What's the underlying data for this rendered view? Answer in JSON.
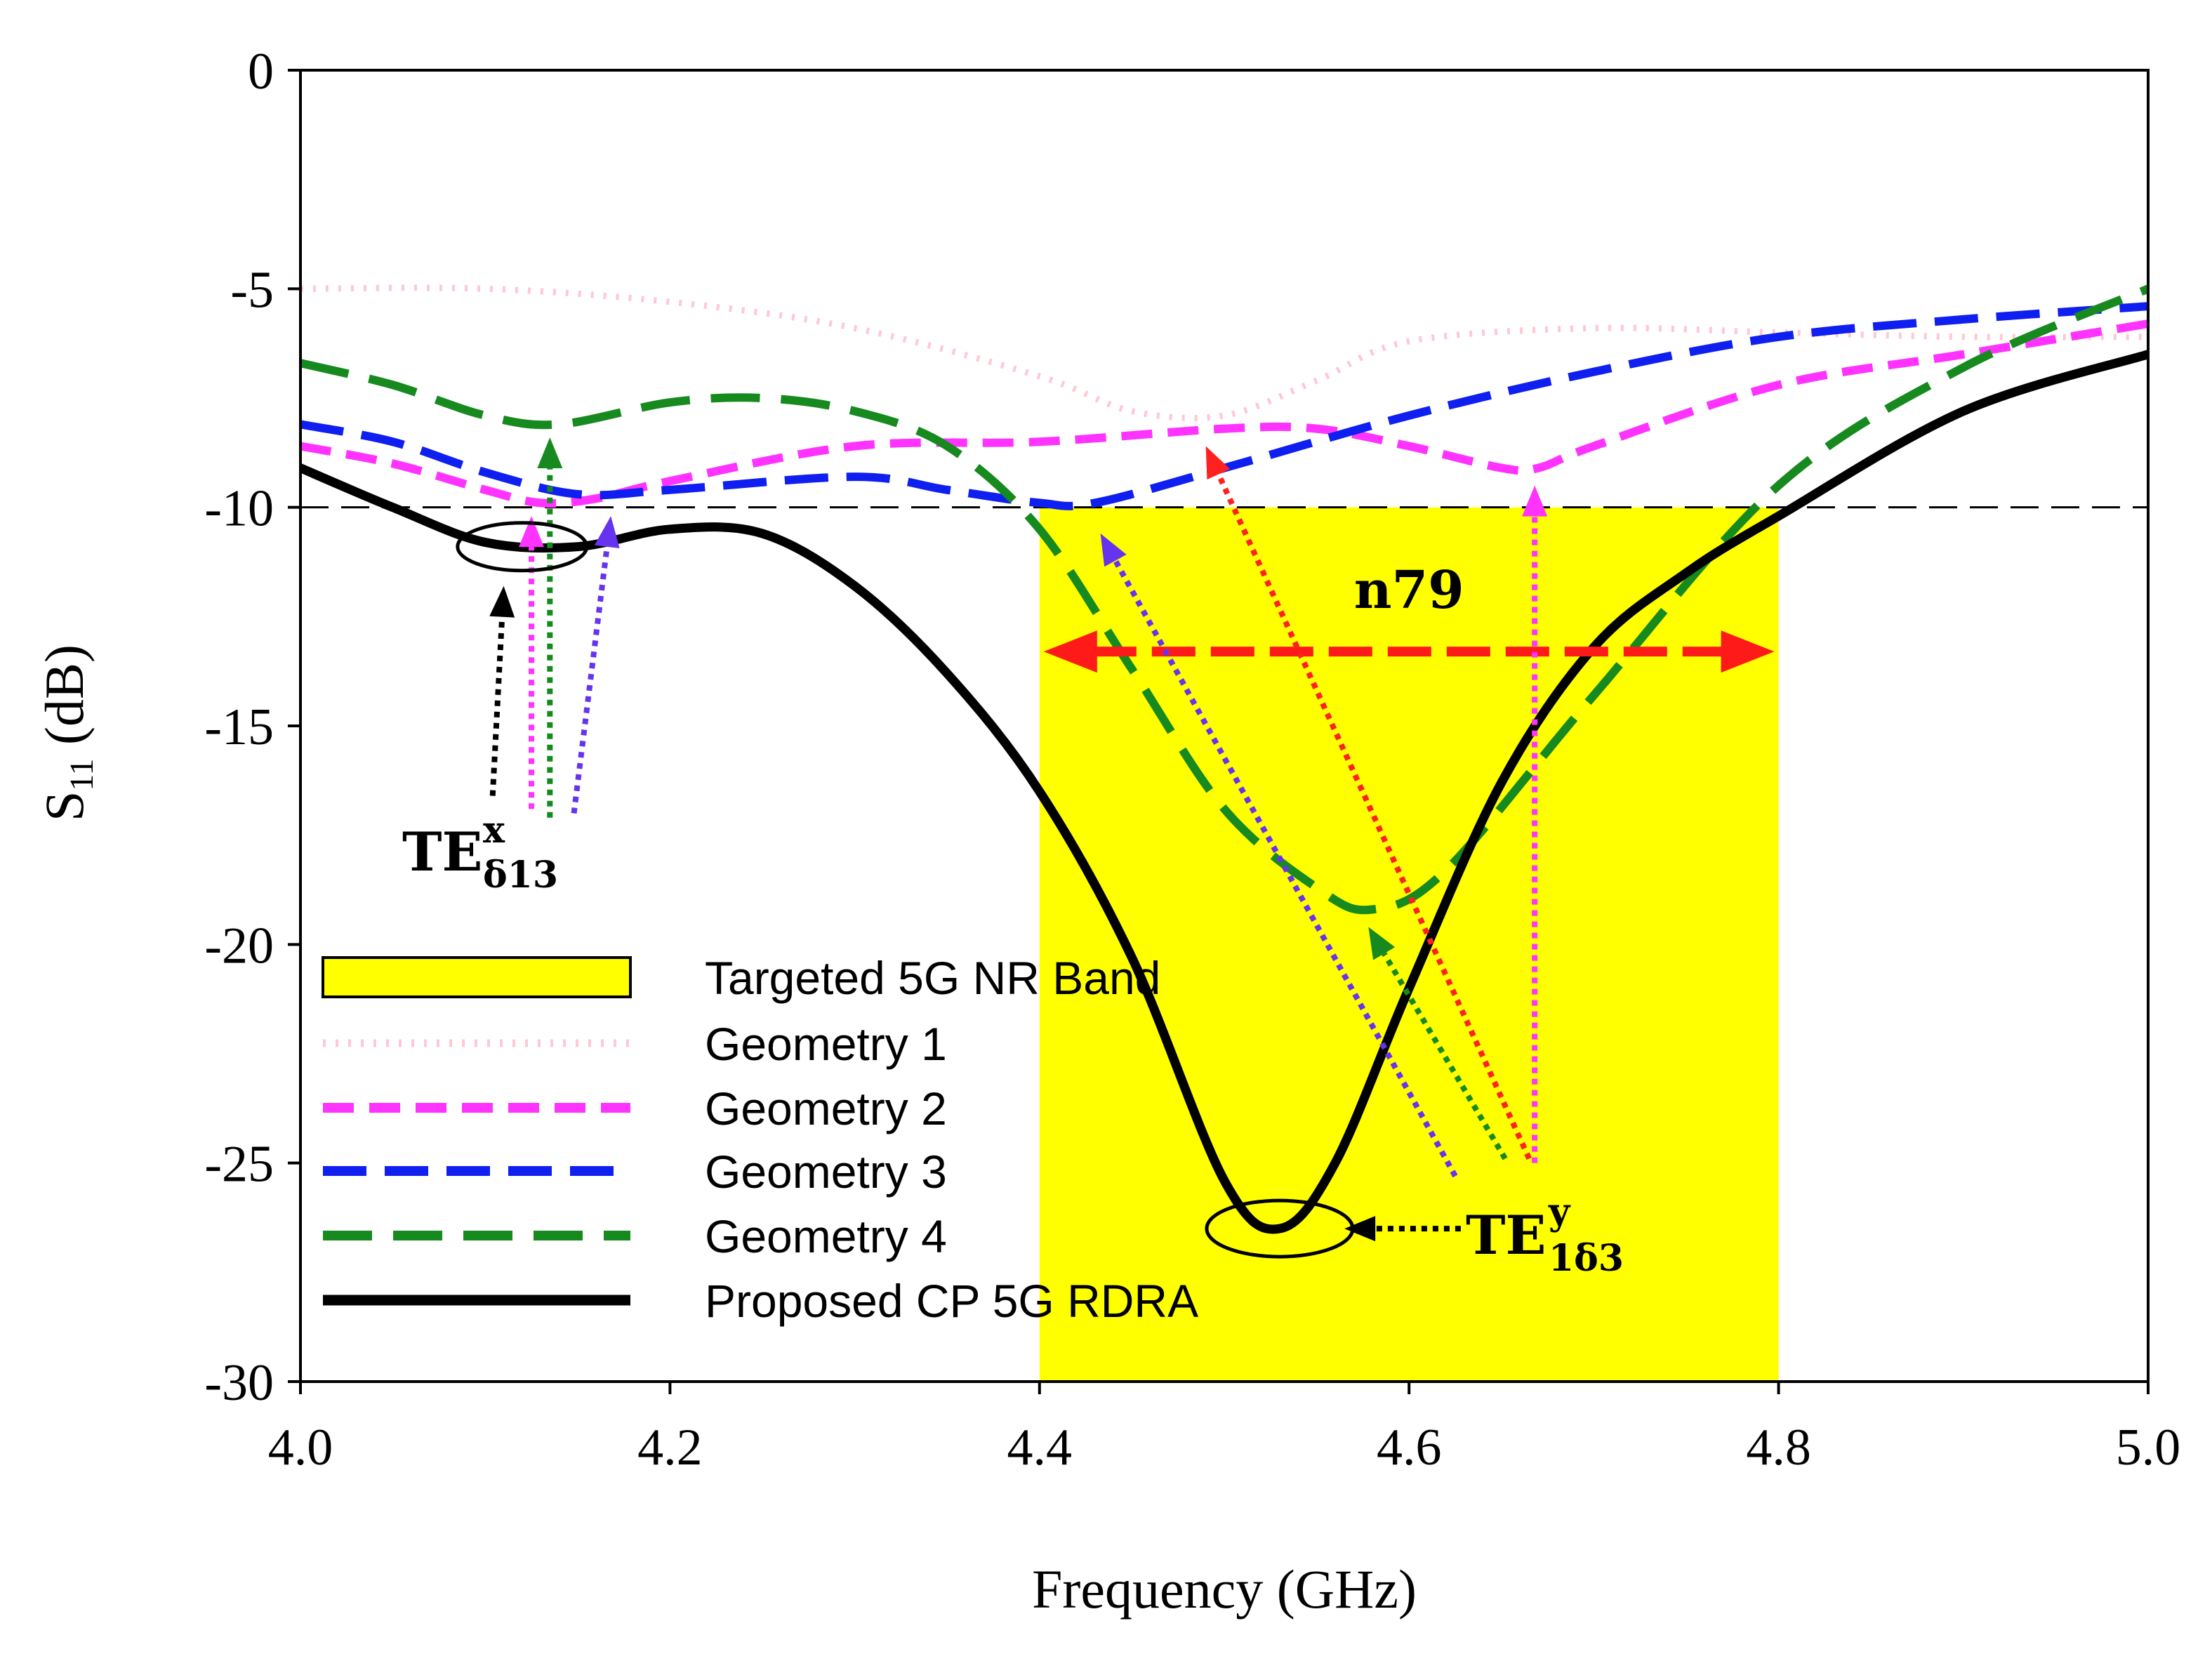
{
  "chart_data": {
    "type": "line",
    "xlabel": "Frequency (GHz)",
    "ylabel": {
      "main": "S",
      "sub": "11",
      "rest": " (dB)"
    },
    "xlim": [
      4.0,
      5.0
    ],
    "ylim": [
      -30,
      0
    ],
    "xticks": [
      "4.0",
      "4.2",
      "4.4",
      "4.6",
      "4.8",
      "5.0"
    ],
    "yticks": [
      "0",
      "-5",
      "-10",
      "-15",
      "-20",
      "-25",
      "-30"
    ],
    "reference_line": {
      "y": -10,
      "style": "dashed",
      "color": "#000000"
    },
    "band": {
      "name": "Targeted 5G NR Band",
      "x0": 4.4,
      "x1": 4.8,
      "y0": -30,
      "y1": -10,
      "color": "#ffff00",
      "label": "n79"
    },
    "series": [
      {
        "name": "Geometry 1",
        "color": "#ffc8d4",
        "style": "dotted",
        "x": [
          4.0,
          4.1,
          4.2,
          4.3,
          4.4,
          4.45,
          4.5,
          4.55,
          4.6,
          4.7,
          4.8,
          4.9,
          5.0
        ],
        "y": [
          -5.0,
          -5.0,
          -5.3,
          -5.9,
          -7.0,
          -7.8,
          -7.9,
          -7.1,
          -6.2,
          -5.9,
          -6.0,
          -6.1,
          -6.1
        ]
      },
      {
        "name": "Geometry 2",
        "color": "#ff33ff",
        "style": "dashed",
        "x": [
          4.0,
          4.05,
          4.1,
          4.13,
          4.16,
          4.2,
          4.3,
          4.4,
          4.5,
          4.55,
          4.6,
          4.65,
          4.67,
          4.7,
          4.8,
          4.9,
          5.0
        ],
        "y": [
          -8.6,
          -9.0,
          -9.6,
          -9.9,
          -9.8,
          -9.4,
          -8.6,
          -8.5,
          -8.2,
          -8.2,
          -8.6,
          -9.1,
          -9.1,
          -8.6,
          -7.2,
          -6.5,
          -5.8
        ]
      },
      {
        "name": "Geometry 3",
        "color": "#0f1ff0",
        "style": "dashed",
        "x": [
          4.0,
          4.05,
          4.1,
          4.15,
          4.2,
          4.3,
          4.35,
          4.4,
          4.43,
          4.5,
          4.6,
          4.7,
          4.8,
          4.9,
          5.0
        ],
        "y": [
          -8.1,
          -8.5,
          -9.2,
          -9.7,
          -9.6,
          -9.3,
          -9.6,
          -9.9,
          -9.9,
          -9.1,
          -7.9,
          -6.9,
          -6.1,
          -5.7,
          -5.4
        ]
      },
      {
        "name": "Geometry 4",
        "color": "#168a1e",
        "style": "dashed",
        "x": [
          4.0,
          4.05,
          4.1,
          4.14,
          4.2,
          4.25,
          4.3,
          4.35,
          4.4,
          4.45,
          4.5,
          4.55,
          4.58,
          4.62,
          4.7,
          4.8,
          4.9,
          5.0
        ],
        "y": [
          -6.7,
          -7.2,
          -7.9,
          -8.1,
          -7.6,
          -7.5,
          -7.8,
          -8.6,
          -10.5,
          -13.7,
          -16.9,
          -18.7,
          -19.2,
          -18.3,
          -14.3,
          -9.5,
          -6.8,
          -5.0
        ]
      },
      {
        "name": "Proposed CP 5G RDRA",
        "color": "#000000",
        "style": "solid",
        "x": [
          4.0,
          4.05,
          4.1,
          4.15,
          4.2,
          4.25,
          4.3,
          4.35,
          4.4,
          4.45,
          4.5,
          4.53,
          4.56,
          4.6,
          4.65,
          4.7,
          4.75,
          4.8,
          4.9,
          5.0
        ],
        "y": [
          -9.1,
          -10.0,
          -10.8,
          -10.9,
          -10.5,
          -10.6,
          -11.8,
          -13.8,
          -16.5,
          -20.3,
          -25.4,
          -26.5,
          -25.0,
          -21.0,
          -16.3,
          -13.2,
          -11.5,
          -10.2,
          -7.8,
          -6.5
        ]
      }
    ],
    "legend": {
      "position": "lower-left",
      "entries": [
        "Targeted 5G NR Band",
        "Geometry 1",
        "Geometry 2",
        "Geometry 3",
        "Geometry 4",
        "Proposed CP 5G RDRA"
      ]
    },
    "annotations": {
      "mode_low": {
        "base": "TE",
        "sup": "x",
        "sub": "δ13",
        "ellipse_center": [
          4.12,
          -10.9
        ]
      },
      "mode_high": {
        "base": "TE",
        "sup": "y",
        "sub": "1δ3",
        "ellipse_center": [
          4.53,
          -26.5
        ]
      },
      "arrows": [
        {
          "color": "#000000",
          "from": [
            4.104,
            -16.6
          ],
          "to": [
            4.11,
            -11.8
          ]
        },
        {
          "color": "#ff33ff",
          "from": [
            4.125,
            -16.9
          ],
          "to": [
            4.125,
            -10.2
          ]
        },
        {
          "color": "#168a1e",
          "from": [
            4.135,
            -17.1
          ],
          "to": [
            4.135,
            -8.4
          ]
        },
        {
          "color": "#6633ee",
          "from": [
            4.148,
            -17.0
          ],
          "to": [
            4.168,
            -10.2
          ]
        },
        {
          "color": "#6633ee",
          "from": [
            4.625,
            -25.3
          ],
          "to": [
            4.433,
            -10.6
          ]
        },
        {
          "color": "#ff2020",
          "from": [
            4.665,
            -24.9
          ],
          "to": [
            4.49,
            -8.6
          ]
        },
        {
          "color": "#168a1e",
          "from": [
            4.652,
            -24.9
          ],
          "to": [
            4.578,
            -19.6
          ]
        },
        {
          "color": "#ff33ff",
          "from": [
            4.668,
            -25.0
          ],
          "to": [
            4.668,
            -9.5
          ]
        },
        {
          "color": "#000000",
          "from": [
            4.628,
            -26.5
          ],
          "to": [
            4.565,
            -26.5
          ]
        }
      ]
    }
  }
}
